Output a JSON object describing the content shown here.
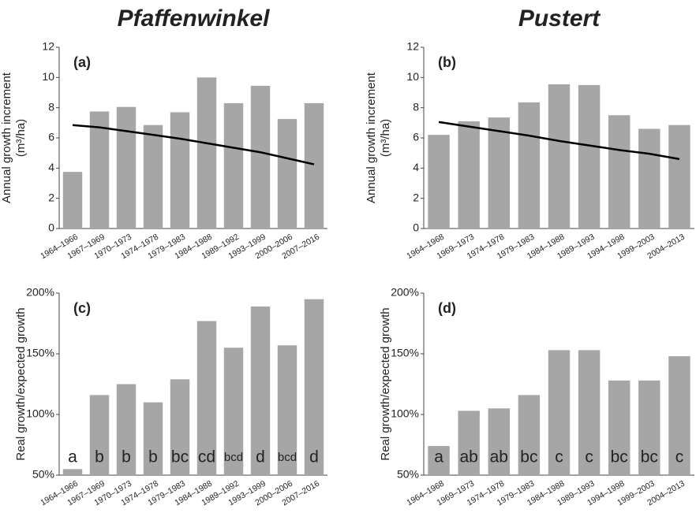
{
  "chart_data": [
    {
      "type": "bar",
      "title": "Pfaffenwinkel",
      "panel_label": "(a)",
      "y_label": [
        "Annual growth increment",
        "(m³/ha)"
      ],
      "categories": [
        "1964–1966",
        "1967–1969",
        "1970–1973",
        "1974–1978",
        "1979–1983",
        "1984–1988",
        "1989–1992",
        "1993–1999",
        "2000–2006",
        "2007–2016"
      ],
      "values": [
        3.75,
        7.75,
        8.05,
        6.85,
        7.7,
        10.0,
        8.3,
        9.45,
        7.25,
        8.3
      ],
      "trend": [
        6.85,
        6.7,
        6.45,
        6.2,
        5.95,
        5.65,
        5.35,
        5.05,
        4.65,
        4.25
      ],
      "color": "#a6a6a6",
      "trend_color": "#000000",
      "ylim": [
        0,
        12
      ],
      "yticks": [
        0,
        2,
        4,
        6,
        8,
        10,
        12
      ]
    },
    {
      "type": "bar",
      "title": "Pustert",
      "panel_label": "(b)",
      "y_label": [
        "Annual growth increment",
        "(m³/ha)"
      ],
      "categories": [
        "1964–1968",
        "1969–1973",
        "1974–1978",
        "1979–1983",
        "1984–1988",
        "1989–1993",
        "1994–1998",
        "1999–2003",
        "2004–2013"
      ],
      "values": [
        6.2,
        7.1,
        7.35,
        8.35,
        9.55,
        9.5,
        7.5,
        6.6,
        6.85
      ],
      "trend": [
        7.05,
        6.75,
        6.45,
        6.15,
        5.8,
        5.5,
        5.2,
        4.95,
        4.6
      ],
      "color": "#a6a6a6",
      "trend_color": "#000000",
      "ylim": [
        0,
        12
      ],
      "yticks": [
        0,
        2,
        4,
        6,
        8,
        10,
        12
      ]
    },
    {
      "type": "bar",
      "panel_label": "(c)",
      "y_label": [
        "Real growth/expected growth"
      ],
      "categories": [
        "1964–1966",
        "1967–1969",
        "1970–1973",
        "1974–1978",
        "1979–1983",
        "1984–1988",
        "1989–1992",
        "1993–1999",
        "2000–2006",
        "2007–2016"
      ],
      "values": [
        55,
        116,
        125,
        110,
        129,
        177,
        155,
        189,
        157,
        195
      ],
      "letters": [
        "a",
        "b",
        "b",
        "b",
        "bc",
        "cd",
        "bcd",
        "d",
        "bcd",
        "d"
      ],
      "color": "#a6a6a6",
      "ylim": [
        50,
        200
      ],
      "yticks": [
        {
          "value": 50,
          "label": "50%"
        },
        {
          "value": 100,
          "label": "100%"
        },
        {
          "value": 150,
          "label": "150%"
        },
        {
          "value": 200,
          "label": "200%"
        }
      ]
    },
    {
      "type": "bar",
      "panel_label": "(d)",
      "y_label": [
        "Real growth/expected growth"
      ],
      "categories": [
        "1964–1968",
        "1969–1973",
        "1974–1978",
        "1979–1983",
        "1984–1988",
        "1989–1993",
        "1994–1998",
        "1999–2003",
        "2004–2013"
      ],
      "values": [
        74,
        103,
        105,
        116,
        153,
        153,
        128,
        128,
        148
      ],
      "letters": [
        "a",
        "ab",
        "ab",
        "bc",
        "c",
        "c",
        "bc",
        "bc",
        "c"
      ],
      "color": "#a6a6a6",
      "ylim": [
        50,
        200
      ],
      "yticks": [
        {
          "value": 50,
          "label": "50%"
        },
        {
          "value": 100,
          "label": "100%"
        },
        {
          "value": 150,
          "label": "150%"
        },
        {
          "value": 200,
          "label": "200%"
        }
      ]
    }
  ]
}
